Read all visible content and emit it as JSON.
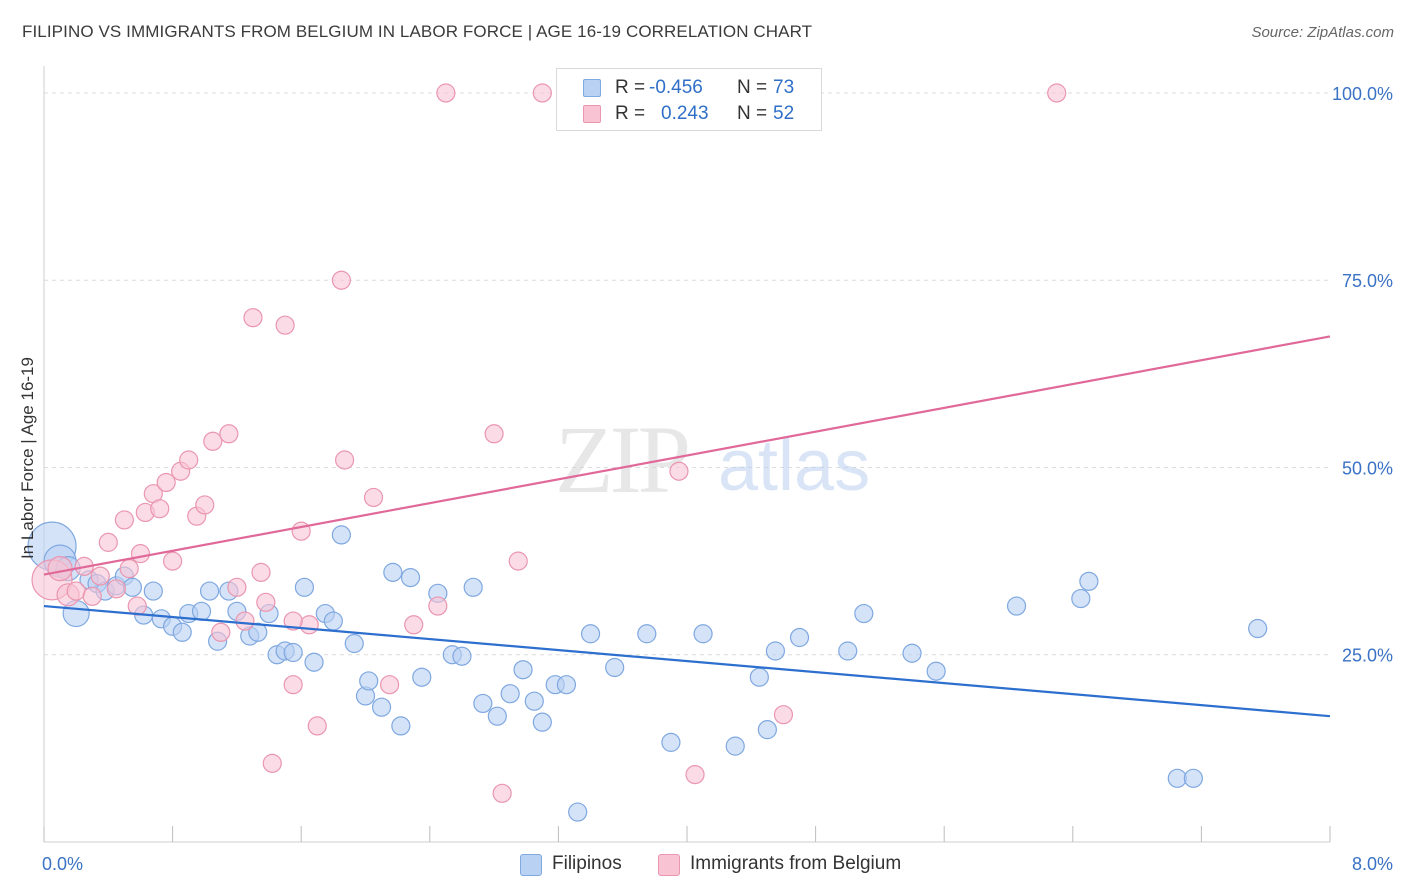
{
  "title": "FILIPINO VS IMMIGRANTS FROM BELGIUM IN LABOR FORCE | AGE 16-19 CORRELATION CHART",
  "source": "Source: ZipAtlas.com",
  "watermark": {
    "zip": "ZIP",
    "atlas": "atlas"
  },
  "colors": {
    "blue_fill": "#b9d1f3",
    "blue_stroke": "#7fa8e0",
    "blue_line": "#2d6fce",
    "pink_fill": "#f8c3d3",
    "pink_stroke": "#ea96b0",
    "pink_line": "#e0699a",
    "axis_text": "#3a72c4",
    "grid": "#dcdcdc"
  },
  "stats_legend": {
    "rows": [
      {
        "r_label": "R = ",
        "r_value": "-0.456",
        "n_label": "N = ",
        "n_value": "73"
      },
      {
        "r_label": "R = ",
        "r_value": "0.243",
        "n_label": "N = ",
        "n_value": "52"
      }
    ]
  },
  "chart_data": {
    "type": "scatter",
    "title": "FILIPINO VS IMMIGRANTS FROM BELGIUM IN LABOR FORCE | AGE 16-19 CORRELATION CHART",
    "xlabel": "",
    "ylabel": "In Labor Force | Age 16-19",
    "xlim": [
      0,
      8
    ],
    "ylim": [
      0,
      102
    ],
    "x_tick_labels": [
      "0.0%",
      "8.0%"
    ],
    "y_ticks": [
      25,
      50,
      75,
      100
    ],
    "y_tick_labels": [
      "25.0%",
      "50.0%",
      "75.0%",
      "100.0%"
    ],
    "grid": true,
    "legend_position": "bottom",
    "series": [
      {
        "name": "Filipinos",
        "color": "#7fa8e0",
        "trend": {
          "x": [
            0,
            8
          ],
          "y": [
            31.5,
            16.8
          ]
        },
        "points": [
          {
            "x": 0.05,
            "y": 39.5,
            "s": 24
          },
          {
            "x": 0.1,
            "y": 37.5,
            "s": 16
          },
          {
            "x": 0.15,
            "y": 36.5,
            "s": 12
          },
          {
            "x": 0.2,
            "y": 30.5,
            "s": 13
          },
          {
            "x": 0.28,
            "y": 35.0
          },
          {
            "x": 0.33,
            "y": 34.5
          },
          {
            "x": 0.38,
            "y": 33.5
          },
          {
            "x": 0.45,
            "y": 34.2
          },
          {
            "x": 0.5,
            "y": 35.5
          },
          {
            "x": 0.55,
            "y": 34.0
          },
          {
            "x": 0.62,
            "y": 30.3
          },
          {
            "x": 0.68,
            "y": 33.5
          },
          {
            "x": 0.73,
            "y": 29.8
          },
          {
            "x": 0.8,
            "y": 28.8
          },
          {
            "x": 0.86,
            "y": 28.0
          },
          {
            "x": 0.9,
            "y": 30.5
          },
          {
            "x": 0.98,
            "y": 30.8
          },
          {
            "x": 1.03,
            "y": 33.5
          },
          {
            "x": 1.08,
            "y": 26.8
          },
          {
            "x": 1.15,
            "y": 33.5
          },
          {
            "x": 1.2,
            "y": 30.8
          },
          {
            "x": 1.28,
            "y": 27.5
          },
          {
            "x": 1.33,
            "y": 28.0
          },
          {
            "x": 1.4,
            "y": 30.5
          },
          {
            "x": 1.45,
            "y": 25.0
          },
          {
            "x": 1.5,
            "y": 25.5
          },
          {
            "x": 1.55,
            "y": 25.3
          },
          {
            "x": 1.62,
            "y": 34.0
          },
          {
            "x": 1.68,
            "y": 24.0
          },
          {
            "x": 1.75,
            "y": 30.5
          },
          {
            "x": 1.8,
            "y": 29.5
          },
          {
            "x": 1.85,
            "y": 41.0
          },
          {
            "x": 1.93,
            "y": 26.5
          },
          {
            "x": 2.0,
            "y": 19.5
          },
          {
            "x": 2.02,
            "y": 21.5
          },
          {
            "x": 2.1,
            "y": 18.0
          },
          {
            "x": 2.17,
            "y": 36.0
          },
          {
            "x": 2.22,
            "y": 15.5
          },
          {
            "x": 2.28,
            "y": 35.3
          },
          {
            "x": 2.35,
            "y": 22.0
          },
          {
            "x": 2.45,
            "y": 33.2
          },
          {
            "x": 2.54,
            "y": 25.0
          },
          {
            "x": 2.6,
            "y": 24.8
          },
          {
            "x": 2.67,
            "y": 34.0
          },
          {
            "x": 2.73,
            "y": 18.5
          },
          {
            "x": 2.82,
            "y": 16.8
          },
          {
            "x": 2.9,
            "y": 19.8
          },
          {
            "x": 2.98,
            "y": 23.0
          },
          {
            "x": 3.05,
            "y": 18.8
          },
          {
            "x": 3.1,
            "y": 16.0
          },
          {
            "x": 3.18,
            "y": 21.0
          },
          {
            "x": 3.25,
            "y": 21.0
          },
          {
            "x": 3.32,
            "y": 4.0
          },
          {
            "x": 3.4,
            "y": 27.8
          },
          {
            "x": 3.55,
            "y": 23.3
          },
          {
            "x": 3.75,
            "y": 27.8
          },
          {
            "x": 3.9,
            "y": 13.3
          },
          {
            "x": 4.1,
            "y": 27.8
          },
          {
            "x": 4.3,
            "y": 12.8
          },
          {
            "x": 4.45,
            "y": 22.0
          },
          {
            "x": 4.5,
            "y": 15.0
          },
          {
            "x": 4.55,
            "y": 25.5
          },
          {
            "x": 4.7,
            "y": 27.3
          },
          {
            "x": 5.0,
            "y": 25.5
          },
          {
            "x": 5.1,
            "y": 30.5
          },
          {
            "x": 5.4,
            "y": 25.2
          },
          {
            "x": 5.55,
            "y": 22.8
          },
          {
            "x": 6.05,
            "y": 31.5
          },
          {
            "x": 6.45,
            "y": 32.5
          },
          {
            "x": 6.5,
            "y": 34.8
          },
          {
            "x": 7.05,
            "y": 8.5
          },
          {
            "x": 7.15,
            "y": 8.5
          },
          {
            "x": 7.55,
            "y": 28.5
          }
        ]
      },
      {
        "name": "Immigrants from Belgium",
        "color": "#ea96b0",
        "trend": {
          "x": [
            0,
            8
          ],
          "y": [
            35.7,
            67.5
          ]
        },
        "points": [
          {
            "x": 0.05,
            "y": 35.0,
            "s": 20
          },
          {
            "x": 0.1,
            "y": 36.5,
            "s": 12
          },
          {
            "x": 0.15,
            "y": 33.0,
            "s": 11
          },
          {
            "x": 0.2,
            "y": 33.5
          },
          {
            "x": 0.25,
            "y": 36.8
          },
          {
            "x": 0.3,
            "y": 32.8
          },
          {
            "x": 0.35,
            "y": 35.5
          },
          {
            "x": 0.4,
            "y": 40.0
          },
          {
            "x": 0.45,
            "y": 33.8
          },
          {
            "x": 0.5,
            "y": 43.0
          },
          {
            "x": 0.53,
            "y": 36.5
          },
          {
            "x": 0.58,
            "y": 31.5
          },
          {
            "x": 0.6,
            "y": 38.5
          },
          {
            "x": 0.63,
            "y": 44.0
          },
          {
            "x": 0.68,
            "y": 46.5
          },
          {
            "x": 0.72,
            "y": 44.5
          },
          {
            "x": 0.76,
            "y": 48.0
          },
          {
            "x": 0.8,
            "y": 37.5
          },
          {
            "x": 0.85,
            "y": 49.5
          },
          {
            "x": 0.9,
            "y": 51.0
          },
          {
            "x": 0.95,
            "y": 43.5
          },
          {
            "x": 1.0,
            "y": 45.0
          },
          {
            "x": 1.05,
            "y": 53.5
          },
          {
            "x": 1.1,
            "y": 28.0
          },
          {
            "x": 1.15,
            "y": 54.5
          },
          {
            "x": 1.2,
            "y": 34.0
          },
          {
            "x": 1.25,
            "y": 29.5
          },
          {
            "x": 1.3,
            "y": 70.0
          },
          {
            "x": 1.35,
            "y": 36.0
          },
          {
            "x": 1.38,
            "y": 32.0
          },
          {
            "x": 1.42,
            "y": 10.5
          },
          {
            "x": 1.5,
            "y": 69.0
          },
          {
            "x": 1.55,
            "y": 21.0
          },
          {
            "x": 1.6,
            "y": 41.5
          },
          {
            "x": 1.65,
            "y": 29.0
          },
          {
            "x": 1.7,
            "y": 15.5
          },
          {
            "x": 1.85,
            "y": 75.0
          },
          {
            "x": 1.87,
            "y": 51.0
          },
          {
            "x": 2.05,
            "y": 46.0
          },
          {
            "x": 2.15,
            "y": 21.0
          },
          {
            "x": 2.3,
            "y": 29.0
          },
          {
            "x": 2.45,
            "y": 31.5
          },
          {
            "x": 2.5,
            "y": 100.0
          },
          {
            "x": 2.8,
            "y": 54.5
          },
          {
            "x": 2.85,
            "y": 6.5
          },
          {
            "x": 2.95,
            "y": 37.5
          },
          {
            "x": 3.1,
            "y": 100.0
          },
          {
            "x": 3.95,
            "y": 49.5
          },
          {
            "x": 4.05,
            "y": 9.0
          },
          {
            "x": 4.6,
            "y": 17.0
          },
          {
            "x": 6.3,
            "y": 100.0
          },
          {
            "x": 1.55,
            "y": 29.5
          }
        ]
      }
    ]
  }
}
